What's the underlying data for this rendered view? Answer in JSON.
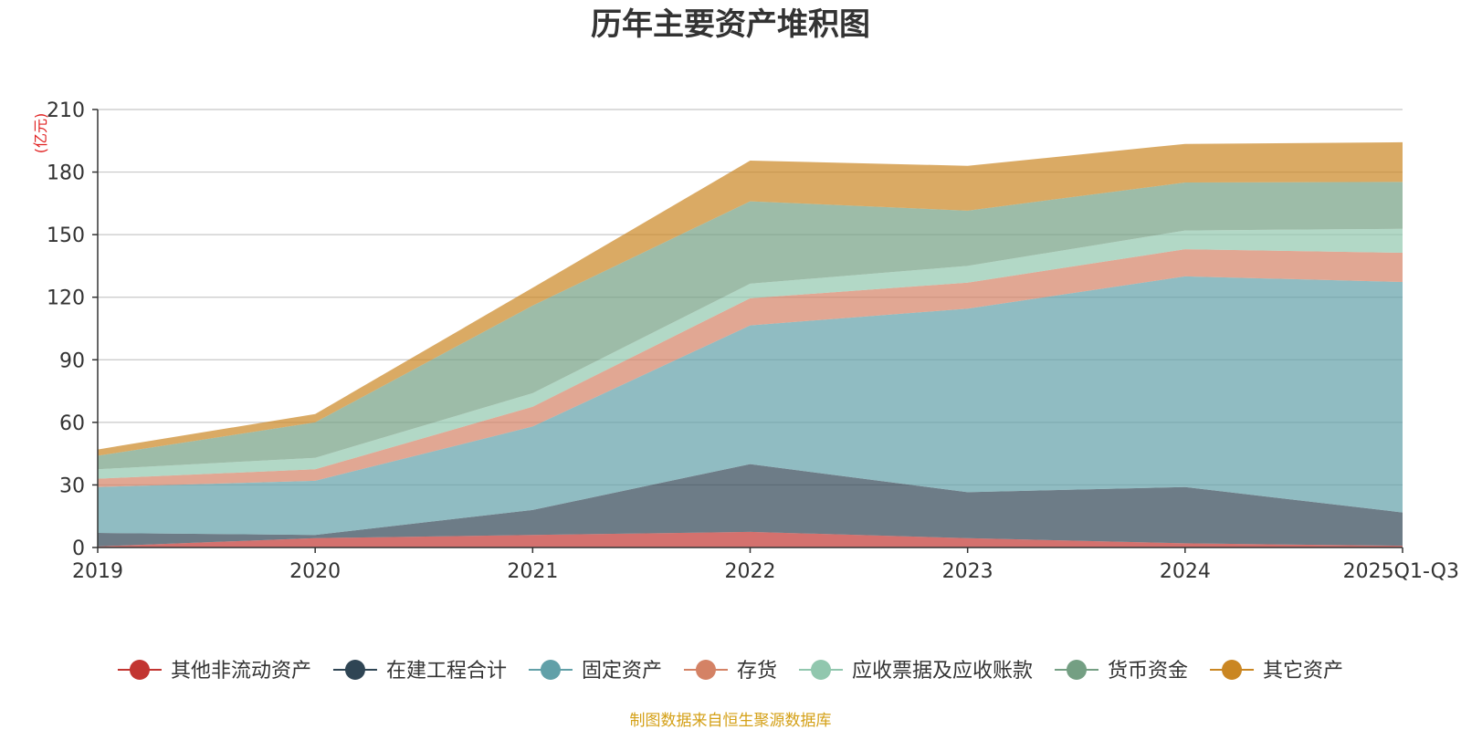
{
  "chart_data": {
    "type": "area",
    "stacked": true,
    "title": "历年主要资产堆积图",
    "ylabel": "(亿元)",
    "xlabel": "",
    "ylim": [
      0,
      210
    ],
    "yticks": [
      0,
      30,
      60,
      90,
      120,
      150,
      180,
      210
    ],
    "categories": [
      "2019",
      "2020",
      "2021",
      "2022",
      "2023",
      "2024",
      "2025Q1-Q3"
    ],
    "grid": true,
    "legend_position": "bottom",
    "series": [
      {
        "name": "其他非流动资产",
        "color": "#c23531",
        "values": [
          0.5,
          4.5,
          6.0,
          7.5,
          4.5,
          2.0,
          0.8
        ]
      },
      {
        "name": "在建工程合计",
        "color": "#2f4554",
        "values": [
          6.5,
          1.5,
          12.0,
          32.5,
          22.0,
          27.0,
          16.0
        ]
      },
      {
        "name": "固定资产",
        "color": "#61a0a8",
        "values": [
          22.0,
          26.0,
          40.0,
          66.5,
          88.0,
          101.0,
          110.5
        ]
      },
      {
        "name": "存货",
        "color": "#d48265",
        "values": [
          4.0,
          5.5,
          9.5,
          13.0,
          12.5,
          13.0,
          14.0
        ]
      },
      {
        "name": "应收票据及应收账款",
        "color": "#91c7ae",
        "values": [
          4.5,
          5.5,
          6.5,
          7.0,
          8.0,
          9.0,
          11.5
        ]
      },
      {
        "name": "货币资金",
        "color": "#749f83",
        "values": [
          6.5,
          17.0,
          42.0,
          39.5,
          26.5,
          23.0,
          22.5
        ]
      },
      {
        "name": "其它资产",
        "color": "#ca8622",
        "values": [
          3.0,
          4.0,
          8.5,
          19.5,
          21.5,
          18.5,
          19.0
        ]
      }
    ],
    "source_note": "制图数据来自恒生聚源数据库"
  }
}
